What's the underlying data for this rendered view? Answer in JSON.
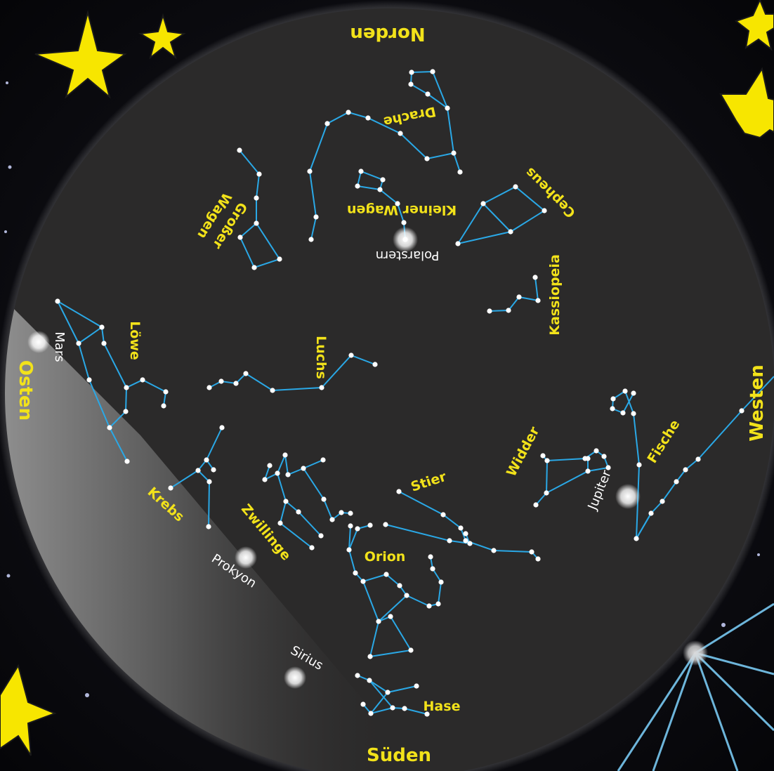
{
  "directions": {
    "north": "Norden",
    "east": "Osten",
    "south": "Süden",
    "west": "Westen"
  },
  "constellations": {
    "drache": "Drache",
    "grosser_wagen": {
      "line1": "Großer",
      "line2": "Wagen"
    },
    "kleiner_wagen": "Kleiner Wagen",
    "cepheus": "Cepheus",
    "kassiopeia": "Kassiopeia",
    "loewe": "Löwe",
    "luchs": "Luchs",
    "krebs": "Krebs",
    "zwillinge": "Zwillinge",
    "stier": "Stier",
    "widder": "Widder",
    "fische": "Fische",
    "orion": "Orion",
    "hase": "Hase"
  },
  "bright_objects": {
    "polarstern": "Polarstern",
    "mars": "Mars",
    "jupiter": "Jupiter",
    "prokyon": "Prokyon",
    "sirius": "Sirius"
  },
  "colors": {
    "label": "#f2e21a",
    "line": "#2aa8e6",
    "sky": "#2b2a2a",
    "background": "#0b0b0f",
    "decorative_star": "#f7e600"
  }
}
